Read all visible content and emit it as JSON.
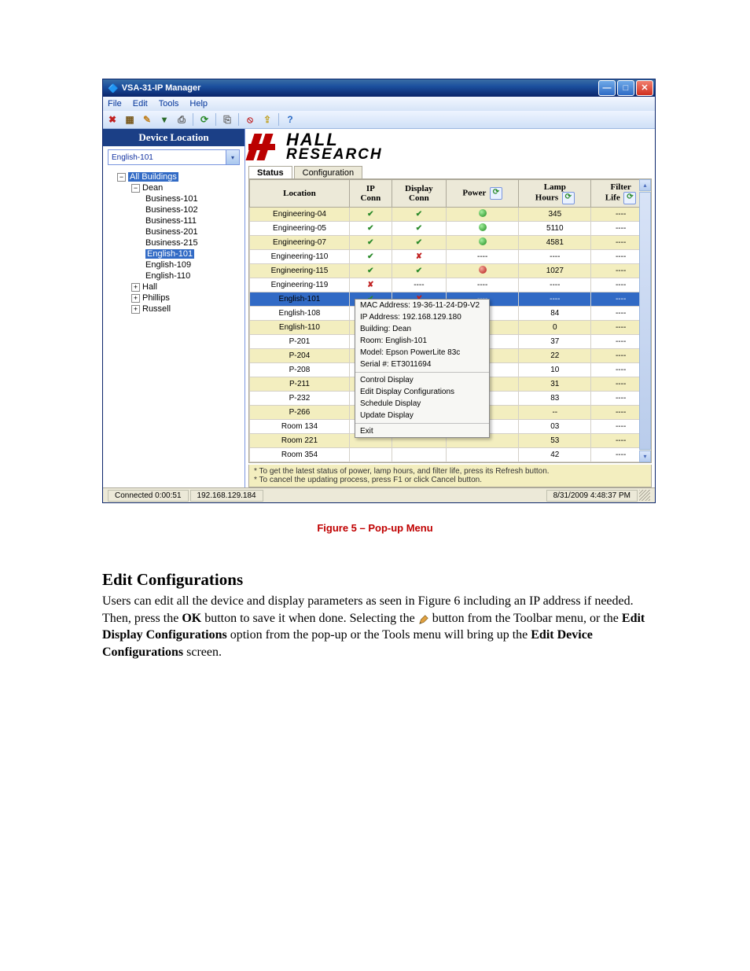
{
  "window": {
    "title": "VSA-31-IP Manager",
    "menus": [
      "File",
      "Edit",
      "Tools",
      "Help"
    ],
    "toolbar": [
      {
        "name": "close-icon",
        "glyph": "✖",
        "color": "#c02020"
      },
      {
        "name": "properties-icon",
        "glyph": "▦",
        "color": "#7a5b20"
      },
      {
        "name": "edit-icon",
        "glyph": "✎",
        "color": "#c08020"
      },
      {
        "name": "filter-icon",
        "glyph": "▾",
        "color": "#2a6a2a"
      },
      {
        "name": "print-icon",
        "glyph": "⎙",
        "color": "#555"
      },
      {
        "name": "sep"
      },
      {
        "name": "refresh-icon",
        "glyph": "⟳",
        "color": "#2a8a2a"
      },
      {
        "name": "sep"
      },
      {
        "name": "copy-icon",
        "glyph": "⎘",
        "color": "#666"
      },
      {
        "name": "sep"
      },
      {
        "name": "stop-icon",
        "glyph": "⦸",
        "color": "#c02020"
      },
      {
        "name": "export-icon",
        "glyph": "⇪",
        "color": "#c0a020"
      },
      {
        "name": "sep"
      },
      {
        "name": "help-icon",
        "glyph": "?",
        "color": "#2a6ac5"
      }
    ]
  },
  "sidebar": {
    "heading": "Device Location",
    "combo_value": "English-101",
    "tree": {
      "root": "All Buildings",
      "dean": {
        "label": "Dean",
        "children": [
          "Business-101",
          "Business-102",
          "Business-111",
          "Business-201",
          "Business-215",
          "English-101",
          "English-109",
          "English-110"
        ],
        "selected_index": 5
      },
      "others": [
        "Hall",
        "Phillips",
        "Russell"
      ]
    }
  },
  "tabs": {
    "active": "Status",
    "other": "Configuration"
  },
  "columns": [
    "Location",
    "IP Conn",
    "Display Conn",
    "Power",
    "Lamp Hours",
    "Filter Life"
  ],
  "rows": [
    {
      "loc": "Engineering-04",
      "ip": "ck",
      "disp": "ck",
      "power": "g",
      "lamp": "345",
      "filter": "----",
      "alt": true
    },
    {
      "loc": "Engineering-05",
      "ip": "ck",
      "disp": "ck",
      "power": "g",
      "lamp": "5110",
      "filter": "----"
    },
    {
      "loc": "Engineering-07",
      "ip": "ck",
      "disp": "ck",
      "power": "g",
      "lamp": "4581",
      "filter": "----",
      "alt": true
    },
    {
      "loc": "Engineering-110",
      "ip": "ck",
      "disp": "cx",
      "power": "----",
      "lamp": "----",
      "filter": "----"
    },
    {
      "loc": "Engineering-115",
      "ip": "ck",
      "disp": "ck",
      "power": "r",
      "lamp": "1027",
      "filter": "----",
      "alt": true
    },
    {
      "loc": "Engineering-119",
      "ip": "cx",
      "disp": "----",
      "power": "----",
      "lamp": "----",
      "filter": "----"
    },
    {
      "loc": "English-101",
      "ip": "ck",
      "disp": "cx",
      "power": "----",
      "lamp": "----",
      "filter": "----",
      "sel": true
    },
    {
      "loc": "English-108",
      "lamp": "84",
      "filter": "----"
    },
    {
      "loc": "English-110",
      "lamp": "0",
      "filter": "----",
      "alt": true
    },
    {
      "loc": "P-201",
      "lamp": "37",
      "filter": "----"
    },
    {
      "loc": "P-204",
      "lamp": "22",
      "filter": "----",
      "alt": true
    },
    {
      "loc": "P-208",
      "lamp": "10",
      "filter": "----"
    },
    {
      "loc": "P-211",
      "lamp": "31",
      "filter": "----",
      "alt": true
    },
    {
      "loc": "P-232",
      "lamp": "83",
      "filter": "----"
    },
    {
      "loc": "P-266",
      "lamp": "--",
      "filter": "----",
      "alt": true
    },
    {
      "loc": "Room 134",
      "lamp": "03",
      "filter": "----"
    },
    {
      "loc": "Room 221",
      "lamp": "53",
      "filter": "----",
      "alt": true
    },
    {
      "loc": "Room 354",
      "lamp": "42",
      "filter": "----"
    }
  ],
  "popup": {
    "info": [
      "MAC Address: 19-36-11-24-D9-V2",
      "IP Address: 192.168.129.180",
      "Building: Dean",
      "Room: English-101",
      "Model: Epson PowerLite 83c",
      "Serial #: ET3011694"
    ],
    "actions": [
      "Control Display",
      "Edit Display Configurations",
      "Schedule Display",
      "Update Display"
    ],
    "exit": "Exit"
  },
  "hints": {
    "l1": "* To get the latest status of power, lamp hours, and filter life, press its Refresh button.",
    "l2": "* To cancel the updating process, press F1 or click Cancel button."
  },
  "status": {
    "conn": "Connected  0:00:51",
    "ip": "192.168.129.184",
    "time": "8/31/2009 4:48:37 PM"
  },
  "caption": "Figure 5 – Pop-up Menu",
  "doc": {
    "heading": "Edit Configurations",
    "p1a": "Users can edit all the device and display parameters as seen in Figure 6 including an IP address if needed.  Then, press the ",
    "ok": "OK",
    "p1b": " button to save it when done.  Selecting the ",
    "p2a": " button from the Toolbar menu, or the ",
    "edc": "Edit Display Configurations",
    "p2b": " option from the pop-up or the Tools menu will bring up the ",
    "edv": "Edit Device Configurations",
    "p2c": " screen."
  },
  "logo": {
    "l1": "HALL",
    "l2": "RESEARCH"
  }
}
